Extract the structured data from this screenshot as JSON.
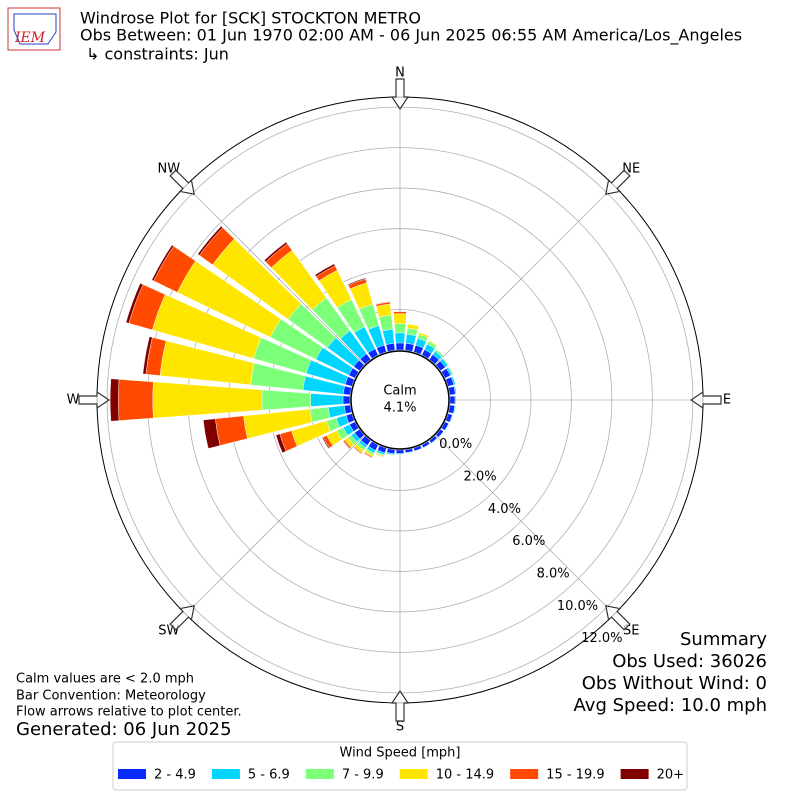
{
  "chart_data": {
    "type": "windrose",
    "logo": "IEM",
    "title": "Windrose Plot for [SCK] STOCKTON METRO",
    "subtitle": "Obs Between: 01 Jun 1970 02:00 AM - 06 Jun 2025 06:55 AM America/Los_Angeles",
    "constraints": "↳ constraints: Jun",
    "compass_labels": [
      "N",
      "NE",
      "E",
      "SE",
      "S",
      "SW",
      "W",
      "NW"
    ],
    "x": [
      0,
      10,
      20,
      30,
      40,
      50,
      60,
      70,
      80,
      90,
      100,
      110,
      120,
      130,
      140,
      150,
      160,
      170,
      180,
      190,
      200,
      210,
      220,
      230,
      240,
      250,
      260,
      270,
      280,
      290,
      300,
      310,
      320,
      330,
      340,
      350
    ],
    "rlim": [
      0,
      12.5
    ],
    "rticks": [
      {
        "value": 0,
        "label": "0.0%"
      },
      {
        "value": 2,
        "label": "2.0%"
      },
      {
        "value": 4,
        "label": "4.0%"
      },
      {
        "value": 6,
        "label": "6.0%"
      },
      {
        "value": 8,
        "label": "8.0%"
      },
      {
        "value": 10,
        "label": "10.0%"
      },
      {
        "value": 12,
        "label": "12.0%"
      }
    ],
    "calm_label": "Calm",
    "calm": 4.1,
    "calm_value_label": "4.1%",
    "legend_title": "Wind Speed [mph]",
    "series": [
      {
        "name": "2 - 4.9",
        "color": "#0a2bff",
        "values": [
          0.35,
          0.35,
          0.35,
          0.3,
          0.3,
          0.3,
          0.3,
          0.3,
          0.28,
          0.25,
          0.25,
          0.22,
          0.2,
          0.18,
          0.16,
          0.15,
          0.15,
          0.15,
          0.18,
          0.2,
          0.25,
          0.3,
          0.3,
          0.3,
          0.3,
          0.3,
          0.3,
          0.35,
          0.35,
          0.35,
          0.35,
          0.35,
          0.35,
          0.35,
          0.35,
          0.35
        ]
      },
      {
        "name": "5 - 6.9",
        "color": "#00d5ff",
        "values": [
          0.5,
          0.45,
          0.35,
          0.3,
          0.2,
          0.15,
          0.1,
          0.08,
          0.06,
          0.05,
          0.04,
          0.03,
          0.03,
          0.02,
          0.02,
          0.02,
          0.02,
          0.03,
          0.04,
          0.06,
          0.1,
          0.15,
          0.15,
          0.2,
          0.35,
          0.5,
          0.8,
          1.6,
          2.0,
          2.0,
          1.8,
          1.6,
          1.4,
          1.2,
          1.0,
          0.7
        ]
      },
      {
        "name": "7 - 9.9",
        "color": "#7cff79",
        "values": [
          0.45,
          0.3,
          0.2,
          0.15,
          0.1,
          0.05,
          0.05,
          0.02,
          0.01,
          0,
          0,
          0,
          0,
          0,
          0,
          0,
          0,
          0,
          0.02,
          0.03,
          0.05,
          0.1,
          0.15,
          0.2,
          0.35,
          0.5,
          0.9,
          2.4,
          2.6,
          2.7,
          2.5,
          2.4,
          2.0,
          1.5,
          1.1,
          0.7
        ]
      },
      {
        "name": "10 - 14.9",
        "color": "#ffe600",
        "values": [
          0.5,
          0.2,
          0.1,
          0.05,
          0,
          0,
          0,
          0,
          0,
          0,
          0,
          0,
          0,
          0,
          0,
          0,
          0,
          0,
          0,
          0.02,
          0.05,
          0.1,
          0.15,
          0.2,
          0.55,
          1.8,
          3.3,
          5.4,
          4.5,
          5.2,
          5.1,
          4.6,
          2.9,
          1.6,
          1.1,
          0.55
        ]
      },
      {
        "name": "15 - 19.9",
        "color": "#ff4a00",
        "values": [
          0.1,
          0,
          0,
          0,
          0,
          0,
          0,
          0,
          0,
          0,
          0,
          0,
          0,
          0,
          0,
          0,
          0,
          0,
          0,
          0,
          0.02,
          0.05,
          0.05,
          0.07,
          0.2,
          0.6,
          1.4,
          1.7,
          0.7,
          1.2,
          1.3,
          0.8,
          0.4,
          0.25,
          0.2,
          0.1
        ]
      },
      {
        "name": "20+",
        "color": "#800000",
        "values": [
          0,
          0,
          0,
          0,
          0,
          0,
          0,
          0,
          0,
          0,
          0,
          0,
          0,
          0,
          0,
          0,
          0,
          0,
          0,
          0,
          0,
          0.02,
          0.02,
          0.03,
          0.05,
          0.2,
          0.6,
          0.4,
          0.15,
          0.15,
          0.1,
          0.1,
          0.1,
          0.1,
          0.05,
          0.02
        ]
      }
    ],
    "notes": [
      "Calm values are < 2.0 mph",
      "Bar Convention: Meteorology",
      "Flow arrows relative to plot center."
    ],
    "generated": "Generated: 06 Jun 2025",
    "summary": [
      "Summary",
      "Obs Used: 36026",
      "Obs Without Wind: 0",
      "Avg Speed: 10.0 mph"
    ]
  }
}
